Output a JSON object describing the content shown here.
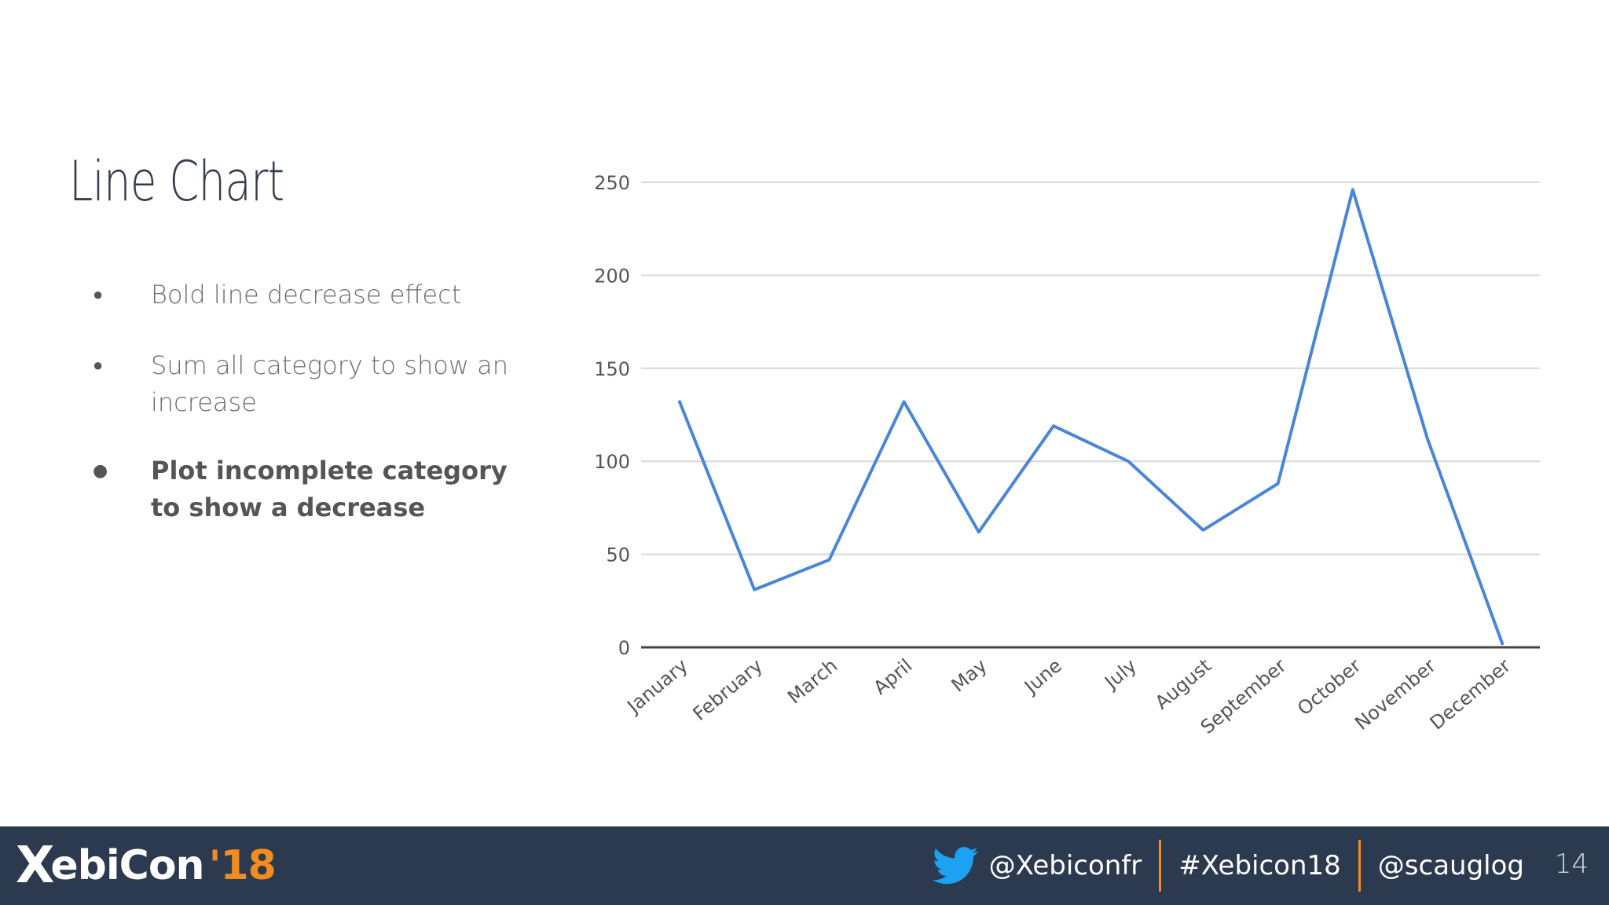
{
  "slide": {
    "title": "Line Chart",
    "bullets": [
      "Bold line decrease effect",
      "Sum all category to show an increase",
      "Plot incomplete category to show a decrease"
    ]
  },
  "chart_data": {
    "type": "line",
    "categories": [
      "January",
      "February",
      "March",
      "April",
      "May",
      "June",
      "July",
      "August",
      "September",
      "October",
      "November",
      "December"
    ],
    "series": [
      {
        "values": [
          132,
          31,
          47,
          132,
          62,
          119,
          100,
          63,
          88,
          246,
          112,
          2
        ]
      }
    ],
    "title": "",
    "xlabel": "",
    "ylabel": "",
    "ylim": [
      0,
      250
    ],
    "yticks": [
      0,
      50,
      100,
      150,
      200,
      250
    ],
    "grid": true,
    "line_color": "#4a86d8"
  },
  "footer": {
    "logo_main": "ebiCon",
    "logo_x": "X",
    "logo_year": "'18",
    "handles": [
      "@Xebiconfr",
      "#Xebicon18",
      "@scauglog"
    ],
    "page_number": "14",
    "accent_color": "#f28c1e",
    "bar_color": "#2c3a4f"
  }
}
